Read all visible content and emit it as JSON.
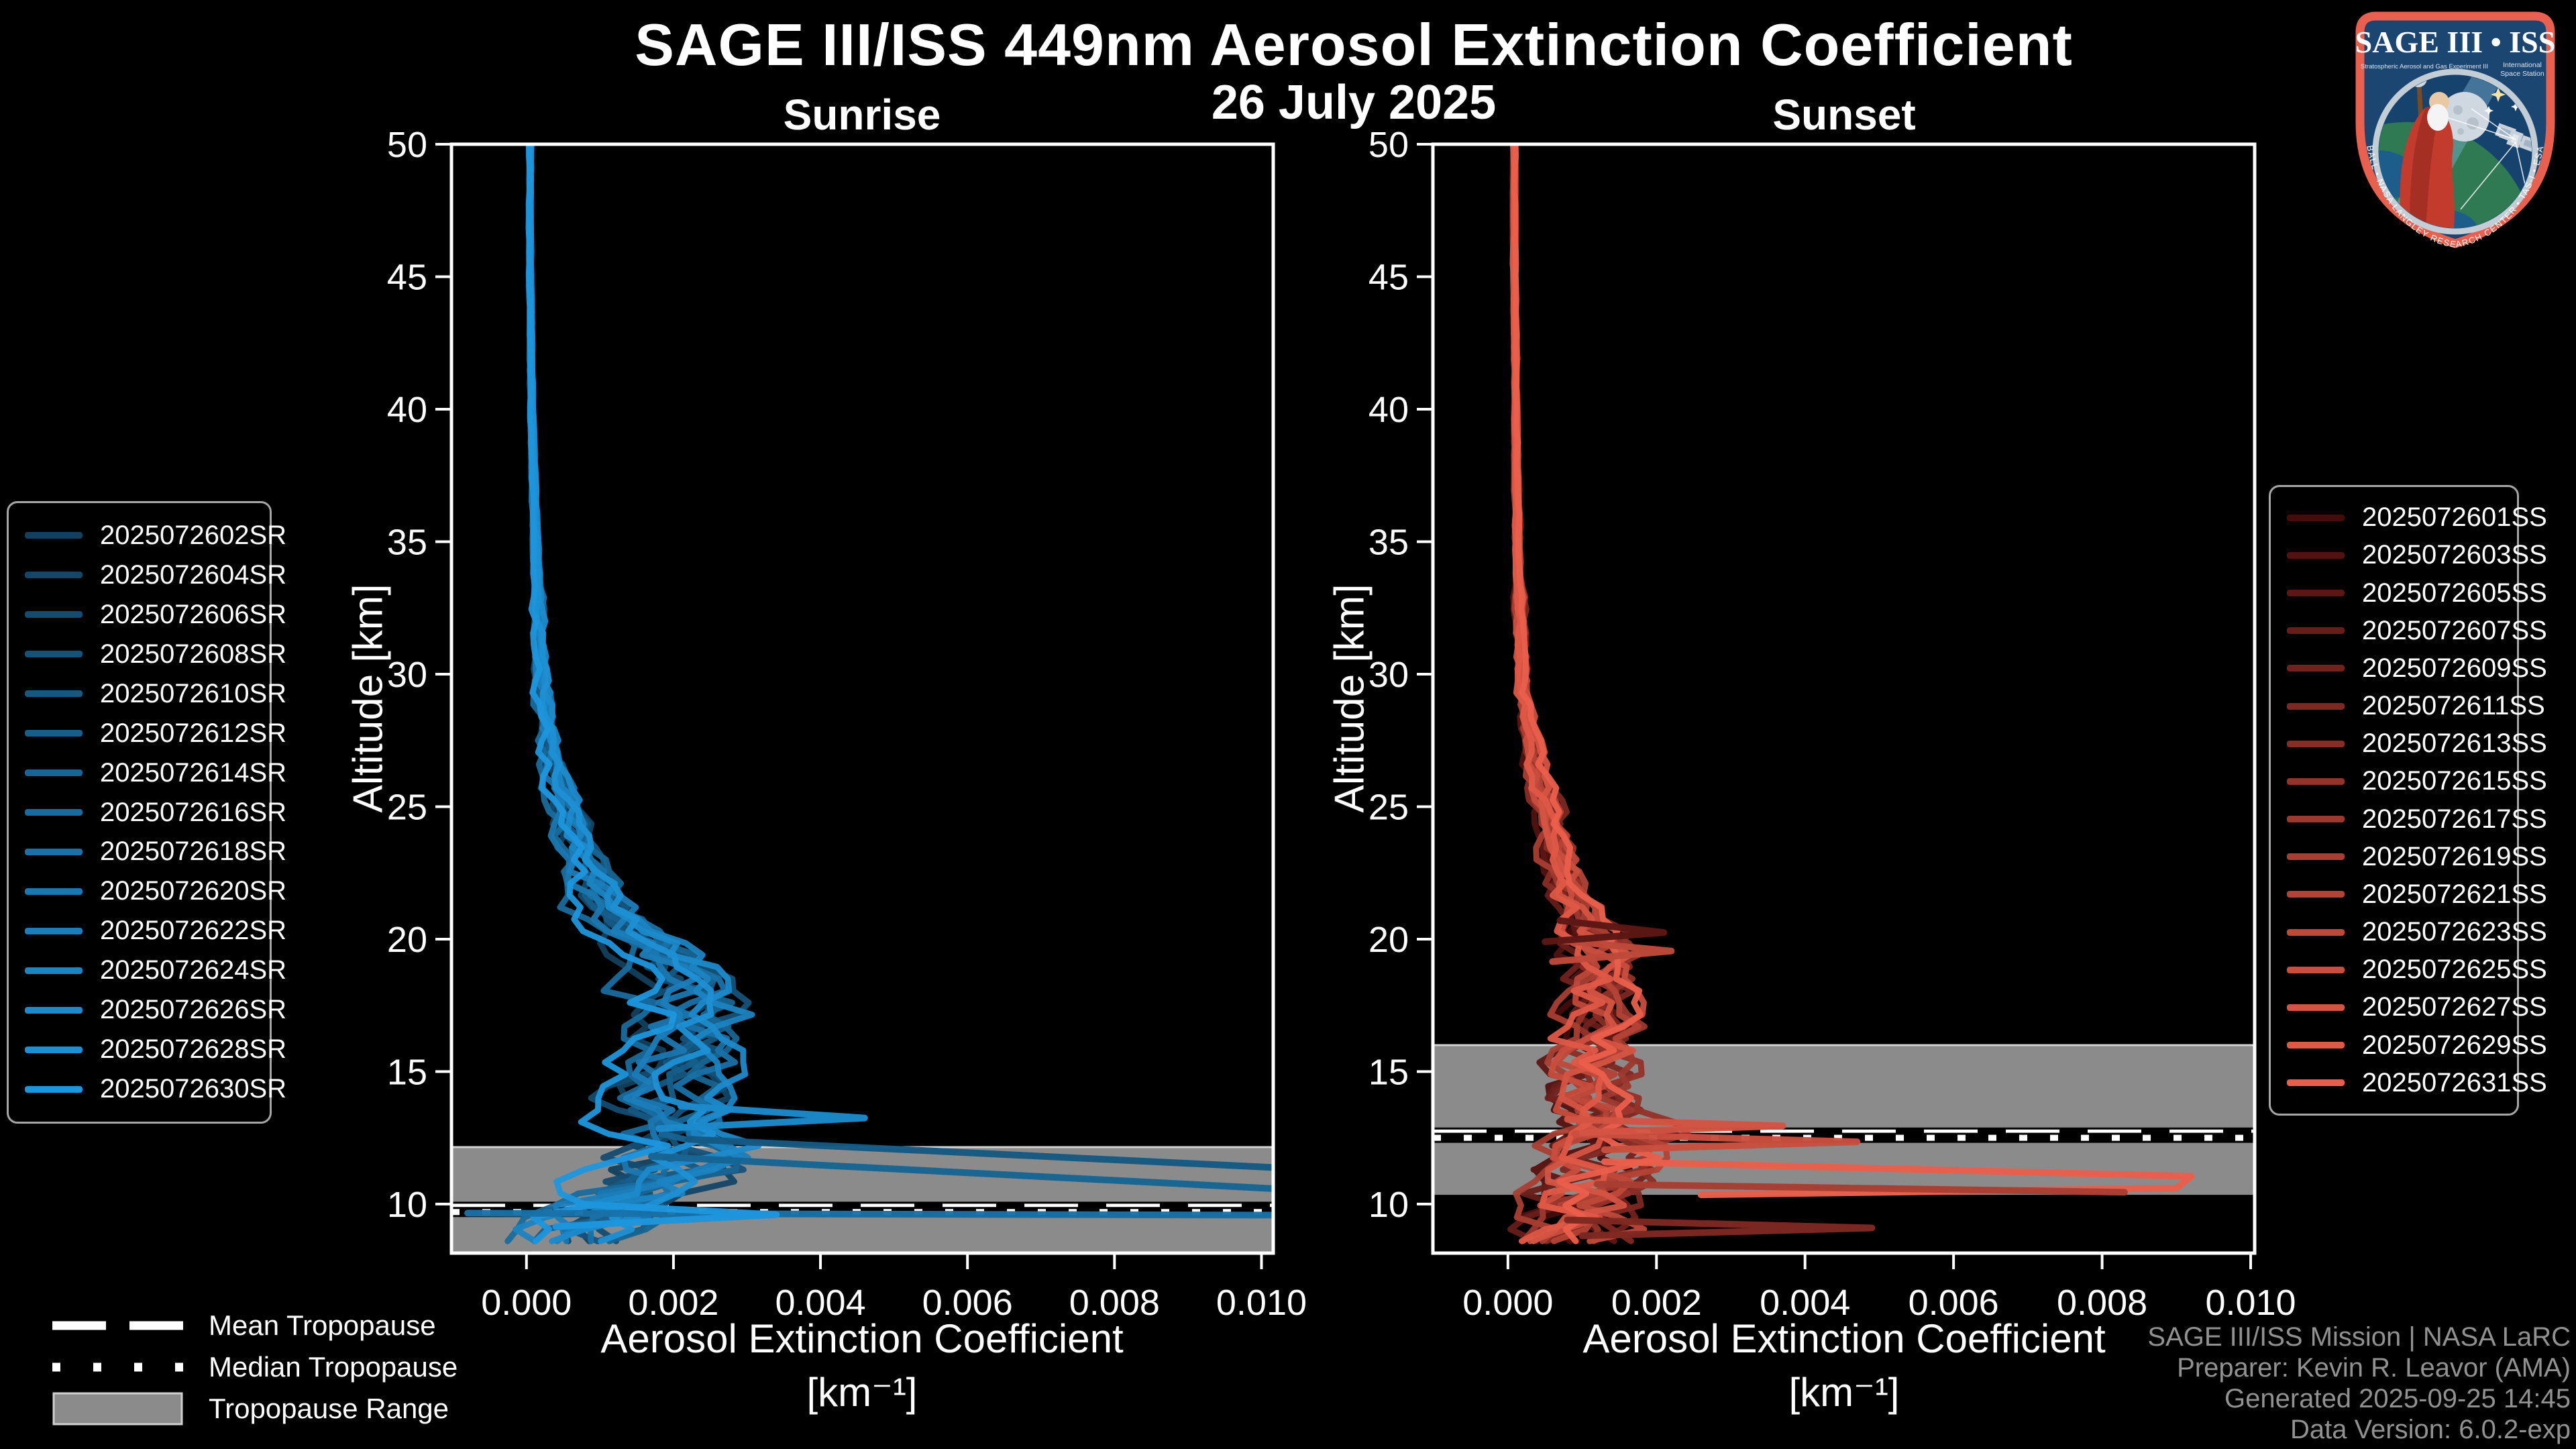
{
  "ui": {
    "main_title": "SAGE III/ISS 449nm Aerosol Extinction Coefficient",
    "date_title": "26 July 2025",
    "footer_lines": [
      "SAGE III/ISS Mission | NASA LaRC",
      "Preparer: Kevin R. Leavor (AMA)",
      "Generated 2025-09-25 14:45",
      "Data Version: 6.0.2-exp"
    ],
    "tropopause_legend": {
      "mean": "Mean Tropopause",
      "median": "Median Tropopause",
      "range": "Tropopause Range"
    },
    "colors": {
      "background": "#000000",
      "axis": "#ffffff",
      "tropopause_band": "#8b8b8b",
      "tropopause_band_edge": "#d0d0d0",
      "tropopause_line": "#ffffff",
      "footer_text": "#919191",
      "legend_border": "#a6a6a6"
    }
  },
  "logo": {
    "title": "SAGE III • ISS",
    "subtitle_left": "Stratospheric Aerosol and Gas Experiment III",
    "subtitle_right_1": "International",
    "subtitle_right_2": "Space Station",
    "bottom_text": "BALL • NASA LANGLEY RESEARCH CENTER • TAS-I • ESA"
  },
  "noise_seed": 20250726,
  "chart_data": [
    {
      "type": "line",
      "panel_title": "Sunrise",
      "xlabel_line1": "Aerosol Extinction Coefficient",
      "xlabel_line2": "[km⁻¹]",
      "ylabel": "Altitude [km]",
      "xlim": [
        -0.00102,
        0.01016
      ],
      "ylim": [
        8.15,
        50
      ],
      "x_ticks": [
        0.0,
        0.002,
        0.004,
        0.006,
        0.008,
        0.01
      ],
      "x_tick_labels": [
        "0.000",
        "0.002",
        "0.004",
        "0.006",
        "0.008",
        "0.010"
      ],
      "y_ticks": [
        50,
        45,
        40,
        35,
        30,
        25,
        20,
        15,
        10
      ],
      "grid": false,
      "legend_position": "outside-left",
      "series": [
        "2025072602SR",
        "2025072604SR",
        "2025072606SR",
        "2025072608SR",
        "2025072610SR",
        "2025072612SR",
        "2025072614SR",
        "2025072616SR",
        "2025072618SR",
        "2025072620SR",
        "2025072622SR",
        "2025072624SR",
        "2025072626SR",
        "2025072628SR",
        "2025072630SR"
      ],
      "series_colors": [
        "#12405e",
        "#134667",
        "#144c70",
        "#155279",
        "#155982",
        "#165f8b",
        "#176594",
        "#186b9e",
        "#1971a7",
        "#1a77b0",
        "#1b7db9",
        "#1b84c2",
        "#1c8acb",
        "#1d90d4",
        "#1e96dd"
      ],
      "base_profile": [
        [
          50,
          5e-05
        ],
        [
          45,
          5e-05
        ],
        [
          40,
          7e-05
        ],
        [
          35,
          0.00012
        ],
        [
          30,
          0.0002
        ],
        [
          28,
          0.00028
        ],
        [
          26,
          0.0004
        ],
        [
          24,
          0.0006
        ],
        [
          22,
          0.0009
        ],
        [
          21,
          0.0011
        ],
        [
          20,
          0.0015
        ],
        [
          19,
          0.0019
        ],
        [
          18,
          0.0021
        ],
        [
          17,
          0.0022
        ],
        [
          16,
          0.0021
        ],
        [
          15,
          0.0019
        ],
        [
          14,
          0.0018
        ],
        [
          13,
          0.0019
        ],
        [
          12,
          0.0021
        ],
        [
          11,
          0.0018
        ],
        [
          10,
          0.0012
        ],
        [
          9,
          0.0008
        ],
        [
          8.2,
          0.0006
        ]
      ],
      "noise_profile": [
        [
          50,
          2e-05
        ],
        [
          45,
          2e-05
        ],
        [
          40,
          3e-05
        ],
        [
          35,
          4e-05
        ],
        [
          30,
          7e-05
        ],
        [
          28,
          0.0001
        ],
        [
          26,
          0.00013
        ],
        [
          24,
          0.00018
        ],
        [
          22,
          0.00025
        ],
        [
          21,
          0.0003
        ],
        [
          20,
          0.00035
        ],
        [
          19,
          0.0004
        ],
        [
          18,
          0.00045
        ],
        [
          17,
          0.0005
        ],
        [
          16,
          0.0005
        ],
        [
          15,
          0.0005
        ],
        [
          14,
          0.0005
        ],
        [
          13,
          0.00055
        ],
        [
          12,
          0.0006
        ],
        [
          11,
          0.0007
        ],
        [
          10,
          0.0008
        ],
        [
          9,
          0.0007
        ],
        [
          8.2,
          0.0006
        ]
      ],
      "outliers": [
        {
          "color_index": 4,
          "points": [
            [
              0.0022,
              12.45
            ],
            [
              0.0104,
              11.35
            ]
          ]
        },
        {
          "color_index": 6,
          "points": [
            [
              0.0017,
              11.8
            ],
            [
              0.0104,
              10.55
            ]
          ]
        },
        {
          "color_index": 8,
          "points": [
            [
              -0.0008,
              9.66
            ],
            [
              0.0104,
              9.58
            ]
          ]
        },
        {
          "color_index": 12,
          "points": [
            [
              0.0021,
              13.7
            ],
            [
              0.0046,
              13.25
            ],
            [
              0.0018,
              12.85
            ]
          ]
        },
        {
          "color_index": 14,
          "points": [
            [
              0.0007,
              10.0
            ],
            [
              0.0034,
              9.6
            ],
            [
              0.0004,
              9.15
            ]
          ]
        }
      ],
      "tropopause": {
        "mean_km": 9.9,
        "median_km": 9.7,
        "range_km": [
          8.15,
          12.15
        ]
      }
    },
    {
      "type": "line",
      "panel_title": "Sunset",
      "xlabel_line1": "Aerosol Extinction Coefficient",
      "xlabel_line2": "[km⁻¹]",
      "ylabel": "Altitude [km]",
      "xlim": [
        -0.00101,
        0.010054
      ],
      "ylim": [
        8.15,
        50
      ],
      "x_ticks": [
        0.0,
        0.002,
        0.004,
        0.006,
        0.008,
        0.01
      ],
      "x_tick_labels": [
        "0.000",
        "0.002",
        "0.004",
        "0.006",
        "0.008",
        "0.010"
      ],
      "y_ticks": [
        50,
        45,
        40,
        35,
        30,
        25,
        20,
        15,
        10
      ],
      "grid": false,
      "legend_position": "outside-right",
      "series": [
        "2025072601SS",
        "2025072603SS",
        "2025072605SS",
        "2025072607SS",
        "2025072609SS",
        "2025072611SS",
        "2025072613SS",
        "2025072615SS",
        "2025072617SS",
        "2025072619SS",
        "2025072621SS",
        "2025072623SS",
        "2025072625SS",
        "2025072627SS",
        "2025072629SS",
        "2025072631SS"
      ],
      "series_colors": [
        "#460c0c",
        "#511210",
        "#5c1714",
        "#671d19",
        "#72221d",
        "#7d2821",
        "#882d25",
        "#933329",
        "#9d382e",
        "#a83e32",
        "#b34336",
        "#be493a",
        "#c94e3e",
        "#d45443",
        "#df5947",
        "#ea5f4b"
      ],
      "base_profile": [
        [
          50,
          8e-05
        ],
        [
          45,
          8e-05
        ],
        [
          40,
          0.0001
        ],
        [
          35,
          0.00012
        ],
        [
          30,
          0.00018
        ],
        [
          28,
          0.00025
        ],
        [
          26,
          0.00038
        ],
        [
          24,
          0.00055
        ],
        [
          22,
          0.00075
        ],
        [
          21,
          0.0009
        ],
        [
          20,
          0.0011
        ],
        [
          19,
          0.0012
        ],
        [
          18,
          0.00115
        ],
        [
          17,
          0.00115
        ],
        [
          16,
          0.0012
        ],
        [
          15,
          0.0011
        ],
        [
          14,
          0.00115
        ],
        [
          13,
          0.0013
        ],
        [
          12,
          0.0012
        ],
        [
          11,
          0.0011
        ],
        [
          10,
          0.001
        ],
        [
          9,
          0.0009
        ],
        [
          8.2,
          0.0008
        ]
      ],
      "noise_profile": [
        [
          50,
          2e-05
        ],
        [
          45,
          2e-05
        ],
        [
          40,
          3e-05
        ],
        [
          35,
          4e-05
        ],
        [
          30,
          6e-05
        ],
        [
          28,
          9e-05
        ],
        [
          26,
          0.00012
        ],
        [
          24,
          0.00016
        ],
        [
          22,
          0.0002
        ],
        [
          21,
          0.00025
        ],
        [
          20,
          0.0003
        ],
        [
          19,
          0.00035
        ],
        [
          18,
          0.0004
        ],
        [
          17,
          0.00045
        ],
        [
          16,
          0.0005
        ],
        [
          15,
          0.0005
        ],
        [
          14,
          0.00055
        ],
        [
          13,
          0.0006
        ],
        [
          12,
          0.00065
        ],
        [
          11,
          0.0007
        ],
        [
          10,
          0.00065
        ],
        [
          9,
          0.0006
        ],
        [
          8.2,
          0.00055
        ]
      ],
      "outliers": [
        {
          "color_index": 15,
          "points": [
            [
              0.0013,
              11.6
            ],
            [
              0.0092,
              11.05
            ],
            [
              0.009,
              10.6
            ],
            [
              0.0026,
              10.35
            ]
          ]
        },
        {
          "color_index": 9,
          "points": [
            [
              0.0012,
              10.75
            ],
            [
              0.0083,
              10.45
            ]
          ]
        },
        {
          "color_index": 12,
          "points": [
            [
              0.0009,
              12.65
            ],
            [
              0.0047,
              12.35
            ],
            [
              0.0013,
              12.05
            ]
          ]
        },
        {
          "color_index": 13,
          "points": [
            [
              0.0008,
              13.2
            ],
            [
              0.0037,
              12.95
            ],
            [
              0.001,
              12.7
            ]
          ]
        },
        {
          "color_index": 11,
          "points": [
            [
              0.0007,
              19.95
            ],
            [
              0.0022,
              19.55
            ],
            [
              0.0006,
              19.15
            ]
          ]
        },
        {
          "color_index": 2,
          "points": [
            [
              0.0007,
              20.7
            ],
            [
              0.0021,
              20.25
            ],
            [
              0.0005,
              19.9
            ]
          ]
        },
        {
          "color_index": 5,
          "points": [
            [
              0.0008,
              9.4
            ],
            [
              0.0049,
              9.1
            ],
            [
              0.001,
              8.8
            ]
          ]
        }
      ],
      "tropopause": {
        "mean_km": 12.7,
        "median_km": 12.5,
        "range_km": [
          10.35,
          16.0
        ]
      }
    }
  ]
}
